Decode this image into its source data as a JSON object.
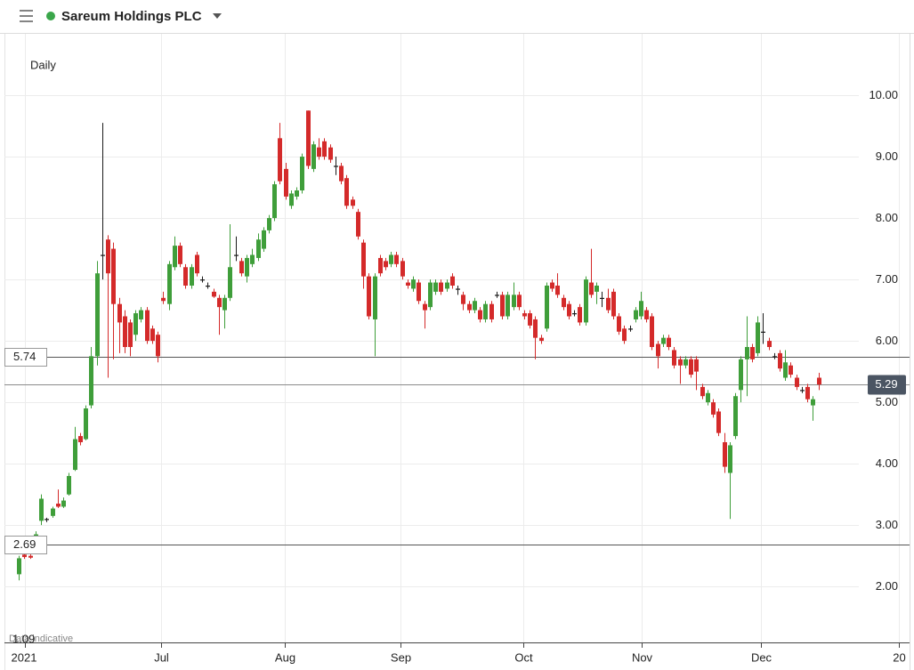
{
  "chart_data": {
    "type": "candlestick",
    "title": "Sareum Holdings PLC",
    "interval": "Daily",
    "note": "Data indicative",
    "up_color": "#3f9e3a",
    "down_color": "#d42a2a",
    "doji_color": "#1a1a1a",
    "grid": true,
    "xlim": [
      -2.6,
      160.4
    ],
    "ylim": [
      1.09,
      11
    ],
    "xticks": [
      {
        "value": 1.1,
        "label": "2021"
      },
      {
        "value": 25.6,
        "label": "Jul"
      },
      {
        "value": 47.9,
        "label": "Aug"
      },
      {
        "value": 68.8,
        "label": "Sep"
      },
      {
        "value": 90.9,
        "label": "Oct"
      },
      {
        "value": 112.2,
        "label": "Nov"
      },
      {
        "value": 133.7,
        "label": "Dec"
      },
      {
        "value": 158.5,
        "label": "20"
      }
    ],
    "yticks": [
      {
        "value": 2,
        "label": "2.00"
      },
      {
        "value": 3,
        "label": "3.00"
      },
      {
        "value": 4,
        "label": "4.00"
      },
      {
        "value": 5,
        "label": "5.00"
      },
      {
        "value": 6,
        "label": "6.00"
      },
      {
        "value": 7,
        "label": "7.00"
      },
      {
        "value": 8,
        "label": "8.00"
      },
      {
        "value": 9,
        "label": "9.00"
      },
      {
        "value": 10,
        "label": "10.00"
      }
    ],
    "ref_lines": [
      5.74,
      2.69
    ],
    "last_price": 5.29,
    "x": [
      0,
      1,
      2,
      3,
      4,
      5,
      6,
      7,
      8,
      9,
      10,
      11,
      12,
      13,
      14,
      15,
      16,
      17,
      18,
      19,
      20,
      21,
      22,
      23,
      24,
      25,
      26,
      27,
      28,
      29,
      30,
      31,
      32,
      33,
      34,
      35,
      36,
      37,
      38,
      39,
      40,
      41,
      42,
      43,
      44,
      45,
      46,
      47,
      48,
      49,
      50,
      51,
      52,
      53,
      54,
      55,
      56,
      57,
      58,
      59,
      60,
      61,
      62,
      63,
      64,
      65,
      66,
      67,
      68,
      69,
      70,
      71,
      72,
      73,
      74,
      75,
      76,
      77,
      78,
      79,
      80,
      81,
      82,
      83,
      84,
      85,
      86,
      87,
      88,
      89,
      90,
      91,
      92,
      93,
      94,
      95,
      96,
      97,
      98,
      99,
      100,
      101,
      102,
      103,
      104,
      105,
      106,
      107,
      108,
      109,
      110,
      111,
      112,
      113,
      114,
      115,
      116,
      117,
      118,
      119,
      120,
      121,
      122,
      123,
      124,
      125,
      126,
      127,
      128,
      129,
      130,
      131,
      132,
      133,
      134,
      135,
      136,
      137,
      138,
      139,
      140,
      141,
      142,
      143,
      144
    ],
    "open": [
      2.2,
      2.52,
      2.5,
      2.65,
      3.07,
      3.1,
      3.15,
      3.35,
      3.3,
      3.5,
      3.9,
      4.45,
      4.4,
      4.95,
      5.75,
      7.4,
      7.65,
      7.5,
      6.6,
      6.4,
      6.3,
      6.1,
      6.35,
      6.5,
      6.2,
      6.1,
      6.7,
      6.6,
      7.2,
      7.55,
      7.2,
      6.9,
      7.4,
      7.0,
      6.9,
      6.8,
      6.7,
      6.5,
      6.7,
      7.4,
      7.3,
      7.05,
      7.25,
      7.35,
      7.5,
      7.8,
      8.0,
      9.3,
      8.8,
      8.2,
      8.35,
      8.45,
      9.75,
      8.8,
      9.15,
      9.25,
      9.15,
      8.85,
      8.85,
      8.65,
      8.3,
      8.1,
      7.6,
      7.05,
      6.35,
      7.35,
      7.3,
      7.25,
      7.4,
      7.3,
      6.95,
      6.85,
      6.95,
      6.6,
      6.55,
      6.8,
      6.95,
      6.85,
      7.05,
      6.85,
      6.75,
      6.6,
      6.5,
      6.5,
      6.35,
      6.6,
      6.75,
      6.75,
      6.4,
      6.55,
      6.75,
      6.45,
      6.45,
      6.35,
      6.05,
      6.2,
      6.95,
      6.9,
      6.7,
      6.6,
      6.45,
      6.55,
      6.3,
      6.95,
      6.8,
      6.7,
      6.7,
      6.8,
      6.4,
      6.2,
      6.2,
      6.35,
      6.4,
      6.5,
      6.4,
      5.95,
      5.95,
      6.05,
      5.85,
      5.7,
      5.6,
      5.7,
      5.7,
      5.25,
      5.0,
      5.0,
      4.85,
      4.35,
      3.85,
      4.45,
      5.2,
      5.7,
      5.9,
      5.8,
      6.15,
      6.0,
      5.75,
      5.8,
      5.4,
      5.6,
      5.4,
      5.2,
      5.25,
      4.95,
      5.4
    ],
    "high": [
      2.5,
      2.6,
      2.55,
      2.9,
      3.5,
      3.12,
      3.3,
      3.58,
      3.45,
      3.85,
      4.6,
      4.5,
      4.95,
      5.9,
      7.3,
      9.55,
      7.72,
      7.6,
      6.7,
      6.5,
      6.35,
      6.5,
      6.55,
      6.55,
      6.25,
      6.15,
      6.8,
      7.3,
      7.7,
      7.6,
      7.25,
      7.25,
      7.45,
      7.05,
      6.95,
      6.85,
      6.75,
      6.75,
      7.9,
      7.7,
      7.35,
      7.4,
      7.5,
      7.75,
      7.85,
      8.05,
      8.6,
      9.55,
      8.9,
      8.45,
      8.5,
      9.05,
      9.75,
      9.25,
      9.3,
      9.3,
      9.2,
      9.0,
      8.9,
      8.7,
      8.35,
      8.15,
      7.65,
      7.1,
      7.1,
      7.4,
      7.35,
      7.45,
      7.45,
      7.35,
      7.0,
      7.05,
      7.0,
      6.65,
      7.0,
      7.0,
      7.0,
      7.0,
      7.1,
      6.9,
      6.8,
      6.65,
      6.7,
      6.55,
      6.65,
      6.65,
      6.8,
      6.8,
      6.8,
      6.95,
      6.8,
      6.5,
      6.5,
      6.4,
      6.1,
      6.95,
      7.0,
      7.1,
      6.75,
      6.65,
      6.5,
      6.6,
      7.05,
      7.5,
      6.95,
      6.8,
      6.85,
      6.85,
      6.45,
      6.25,
      6.25,
      6.55,
      6.8,
      6.55,
      6.45,
      6.0,
      6.1,
      6.1,
      5.9,
      5.75,
      5.75,
      5.75,
      5.75,
      5.3,
      5.2,
      5.05,
      4.9,
      4.5,
      4.35,
      5.15,
      5.75,
      6.4,
      5.95,
      6.4,
      6.45,
      6.05,
      5.8,
      5.85,
      5.85,
      5.65,
      5.45,
      5.25,
      5.3,
      5.1,
      5.48
    ],
    "low": [
      2.1,
      2.45,
      2.45,
      2.6,
      3.0,
      3.05,
      3.12,
      3.28,
      3.28,
      3.48,
      3.88,
      4.3,
      4.38,
      4.9,
      5.6,
      7.0,
      5.4,
      5.7,
      5.8,
      5.8,
      5.75,
      6.0,
      6.3,
      5.95,
      5.95,
      5.65,
      6.6,
      6.5,
      7.15,
      7.2,
      6.85,
      6.85,
      7.05,
      6.95,
      6.85,
      6.7,
      6.1,
      6.2,
      6.65,
      7.3,
      7.05,
      6.95,
      7.2,
      7.3,
      7.45,
      7.75,
      7.95,
      8.55,
      8.3,
      8.15,
      8.3,
      8.4,
      8.8,
      8.75,
      8.95,
      8.95,
      8.9,
      8.7,
      8.55,
      8.15,
      8.15,
      7.65,
      6.85,
      6.35,
      5.75,
      7.05,
      7.15,
      7.2,
      7.2,
      7.0,
      6.85,
      6.8,
      6.6,
      6.2,
      6.5,
      6.75,
      6.75,
      6.8,
      6.85,
      6.75,
      6.5,
      6.45,
      6.45,
      6.3,
      6.3,
      6.3,
      6.7,
      6.35,
      6.35,
      6.5,
      6.5,
      6.35,
      6.2,
      5.7,
      5.95,
      6.15,
      6.8,
      6.7,
      6.5,
      6.35,
      6.4,
      6.25,
      6.25,
      6.7,
      6.6,
      6.55,
      6.45,
      6.35,
      6.1,
      5.95,
      6.15,
      6.3,
      6.35,
      6.3,
      5.85,
      5.55,
      5.9,
      5.85,
      5.55,
      5.3,
      5.55,
      5.4,
      5.2,
      5.05,
      4.95,
      4.75,
      4.45,
      3.85,
      3.1,
      4.4,
      5.0,
      5.1,
      5.65,
      5.75,
      5.95,
      5.85,
      5.7,
      5.5,
      5.35,
      5.4,
      5.2,
      5.15,
      5.0,
      4.7,
      5.2
    ],
    "close": [
      2.46,
      2.48,
      2.47,
      2.85,
      3.43,
      3.1,
      3.27,
      3.3,
      3.4,
      3.8,
      4.4,
      4.35,
      4.9,
      5.75,
      7.1,
      7.4,
      7.1,
      6.6,
      6.3,
      5.9,
      5.9,
      6.45,
      6.5,
      6.0,
      6.0,
      5.75,
      6.65,
      7.25,
      7.55,
      7.25,
      6.9,
      7.2,
      7.1,
      7.0,
      6.9,
      6.72,
      6.55,
      6.7,
      7.2,
      7.4,
      7.1,
      7.35,
      7.4,
      7.65,
      7.8,
      8.0,
      8.55,
      8.6,
      8.35,
      8.4,
      8.45,
      9.0,
      8.85,
      9.2,
      9.0,
      9.0,
      8.95,
      8.85,
      8.6,
      8.2,
      8.2,
      7.7,
      7.05,
      6.4,
      7.05,
      7.1,
      7.2,
      7.4,
      7.25,
      7.05,
      6.9,
      7.0,
      6.65,
      6.5,
      6.95,
      6.95,
      6.8,
      6.95,
      6.9,
      6.85,
      6.6,
      6.5,
      6.65,
      6.35,
      6.6,
      6.35,
      6.75,
      6.4,
      6.75,
      6.75,
      6.55,
      6.4,
      6.25,
      6.05,
      6.0,
      6.9,
      6.85,
      6.75,
      6.55,
      6.4,
      6.45,
      6.3,
      7.0,
      6.75,
      6.9,
      6.7,
      6.5,
      6.4,
      6.15,
      6.0,
      6.2,
      6.5,
      6.65,
      6.35,
      5.9,
      5.75,
      6.05,
      5.9,
      5.6,
      5.6,
      5.7,
      5.45,
      5.5,
      5.1,
      5.15,
      4.8,
      4.5,
      3.95,
      4.3,
      5.1,
      5.7,
      5.9,
      5.7,
      6.3,
      6.15,
      5.9,
      5.75,
      5.55,
      5.65,
      5.45,
      5.25,
      5.2,
      5.05,
      5.05,
      5.29
    ]
  }
}
